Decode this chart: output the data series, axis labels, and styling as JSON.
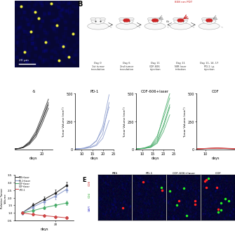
{
  "bg_color": "#ffffff",
  "pbs_x": [
    [
      7,
      9,
      11,
      14,
      17,
      20,
      23
    ],
    [
      7,
      9,
      11,
      14,
      17,
      20,
      23
    ],
    [
      7,
      9,
      11,
      14,
      17,
      20,
      23
    ],
    [
      7,
      9,
      11,
      14,
      17,
      20,
      23
    ]
  ],
  "pbs_y": [
    [
      5,
      8,
      18,
      55,
      130,
      260,
      400
    ],
    [
      5,
      10,
      22,
      70,
      160,
      300,
      450
    ],
    [
      5,
      7,
      15,
      45,
      110,
      230,
      370
    ],
    [
      5,
      9,
      20,
      60,
      140,
      270,
      420
    ]
  ],
  "pd1_x": [
    [
      7,
      9,
      11,
      14,
      17,
      20,
      23
    ],
    [
      7,
      9,
      11,
      14,
      17,
      20,
      23
    ],
    [
      7,
      9,
      11,
      14,
      17,
      20,
      23
    ],
    [
      7,
      9,
      11,
      14,
      17,
      20,
      23
    ]
  ],
  "pd1_y": [
    [
      5,
      6,
      9,
      18,
      45,
      140,
      420
    ],
    [
      5,
      7,
      11,
      28,
      75,
      210,
      490
    ],
    [
      5,
      6,
      8,
      15,
      35,
      100,
      260
    ],
    [
      5,
      8,
      12,
      30,
      80,
      180,
      380
    ]
  ],
  "cof_x": [
    [
      7,
      9,
      11,
      14,
      17,
      20,
      23
    ],
    [
      7,
      9,
      11,
      14,
      17,
      20,
      23
    ],
    [
      7,
      9,
      11,
      14,
      17,
      20,
      23
    ],
    [
      7,
      9,
      11,
      14,
      17,
      20,
      23
    ],
    [
      7,
      9,
      11,
      14,
      17,
      20,
      23
    ]
  ],
  "cof_y": [
    [
      5,
      7,
      10,
      20,
      65,
      200,
      380
    ],
    [
      5,
      8,
      12,
      28,
      100,
      310,
      500
    ],
    [
      5,
      6,
      9,
      18,
      55,
      160,
      310
    ],
    [
      5,
      9,
      14,
      35,
      120,
      280,
      460
    ],
    [
      5,
      7,
      11,
      25,
      80,
      220,
      400
    ]
  ],
  "cofpd1_x": [
    [
      7,
      9,
      11,
      14,
      17,
      20
    ],
    [
      7,
      9,
      11,
      14,
      17,
      20
    ],
    [
      7,
      9,
      11,
      14,
      17,
      20
    ],
    [
      7,
      9,
      11,
      14,
      17,
      20
    ],
    [
      7,
      9,
      11,
      14,
      17,
      20
    ]
  ],
  "cofpd1_y": [
    [
      5,
      6,
      9,
      11,
      9,
      7
    ],
    [
      5,
      7,
      10,
      13,
      10,
      6
    ],
    [
      5,
      6,
      8,
      10,
      7,
      4
    ],
    [
      5,
      7,
      9,
      12,
      8,
      5
    ],
    [
      5,
      8,
      11,
      14,
      11,
      8
    ]
  ],
  "black_color": "#222222",
  "blue_color": "#8899cc",
  "green_color": "#44aa66",
  "red_color": "#cc4444",
  "D_days": [
    11,
    14,
    17,
    20,
    23
  ],
  "D_pbs": [
    1.0,
    1.5,
    1.9,
    2.3,
    2.8
  ],
  "D_pbs_err": [
    0.1,
    0.15,
    0.18,
    0.22,
    0.25
  ],
  "D_pd1": [
    1.0,
    1.4,
    1.75,
    2.1,
    2.55
  ],
  "D_pd1_err": [
    0.12,
    0.14,
    0.17,
    0.2,
    0.22
  ],
  "D_cof": [
    1.0,
    1.15,
    1.35,
    1.5,
    1.65
  ],
  "D_cof_err": [
    0.08,
    0.1,
    0.11,
    0.13,
    0.14
  ],
  "D_cofpd1": [
    1.0,
    0.9,
    0.82,
    0.75,
    0.68
  ],
  "D_cofpd1_err": [
    0.05,
    0.06,
    0.07,
    0.08,
    0.09
  ],
  "ylim_t": [
    0,
    500
  ],
  "yticks_t": [
    0,
    250,
    500
  ]
}
